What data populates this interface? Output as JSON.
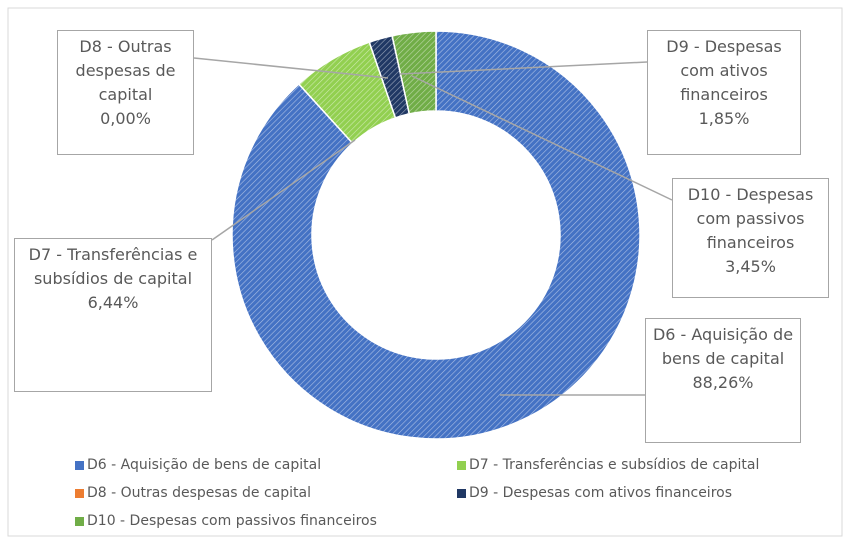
{
  "chart_data": {
    "type": "donut",
    "categories": [
      "D6 - Aquisição de bens de capital",
      "D7 - Transferências e subsídios de capital",
      "D8 - Outras despesas de capital",
      "D9 - Despesas com ativos financeiros",
      "D10 - Despesas com passivos financeiros"
    ],
    "values": [
      88.26,
      6.44,
      0.0,
      1.85,
      3.45
    ],
    "value_labels": [
      "88,26%",
      "6,44%",
      "0,00%",
      "1,85%",
      "3,45%"
    ],
    "colors": [
      "#4472c4",
      "#92d050",
      "#ed7d31",
      "#203864",
      "#70ad47"
    ],
    "legend": "bottom"
  }
}
